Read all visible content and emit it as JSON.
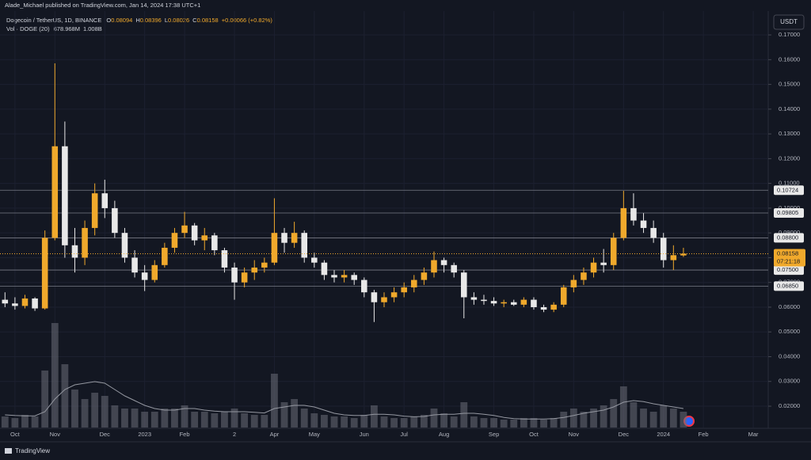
{
  "header": {
    "publisher": "Alade_Michael published on TradingView.com, Jan 14, 2024 17:38 UTC+1",
    "symbol": "Dogecoin / TetherUS, 1D, BINANCE",
    "ohlc": [
      {
        "label": "O",
        "value": 0.08094
      },
      {
        "label": "H",
        "value": 0.08396
      },
      {
        "label": "L",
        "value": 0.08026
      },
      {
        "label": "C",
        "value": 0.08158
      }
    ],
    "change": "+0.00066 (+0.82%)",
    "volume_label": "Vol · DOGE (20)",
    "volume_value": "678.968M",
    "volume_ma_value": "1.008B",
    "currency": "USDT"
  },
  "footer": {
    "brand": "TradingView"
  },
  "chart_data": {
    "type": "candlestick",
    "up_color": "#f0a92c",
    "down_color": "#e8e8e8",
    "grid": true,
    "categories": [
      null,
      "Oct",
      null,
      null,
      null,
      "Nov",
      null,
      null,
      null,
      null,
      "Dec",
      null,
      null,
      null,
      "2023",
      null,
      null,
      null,
      "Feb",
      null,
      null,
      null,
      null,
      "2",
      null,
      null,
      null,
      "Apr",
      null,
      null,
      null,
      "May",
      null,
      null,
      null,
      null,
      "Jun",
      null,
      null,
      null,
      "Jul",
      null,
      null,
      null,
      "Aug",
      null,
      null,
      null,
      null,
      "Sep",
      null,
      null,
      null,
      "Oct",
      null,
      null,
      null,
      "Nov",
      null,
      null,
      null,
      null,
      "Dec",
      null,
      null,
      null,
      "2024",
      null,
      null,
      null,
      "Feb",
      null,
      null,
      null,
      null,
      "Mar",
      null
    ],
    "candles": [
      [
        0.063,
        0.066,
        0.06,
        0.0615
      ],
      [
        0.0615,
        0.064,
        0.059,
        0.0605
      ],
      [
        0.0605,
        0.065,
        0.0595,
        0.0635
      ],
      [
        0.0635,
        0.064,
        0.0585,
        0.0595
      ],
      [
        0.0595,
        0.091,
        0.059,
        0.088
      ],
      [
        0.088,
        0.1585,
        0.087,
        0.125
      ],
      [
        0.125,
        0.135,
        0.08,
        0.085
      ],
      [
        0.085,
        0.092,
        0.074,
        0.08
      ],
      [
        0.08,
        0.095,
        0.077,
        0.092
      ],
      [
        0.092,
        0.11,
        0.089,
        0.106
      ],
      [
        0.106,
        0.1115,
        0.096,
        0.1
      ],
      [
        0.1,
        0.103,
        0.088,
        0.09
      ],
      [
        0.09,
        0.092,
        0.078,
        0.08
      ],
      [
        0.08,
        0.083,
        0.072,
        0.074
      ],
      [
        0.074,
        0.077,
        0.0665,
        0.071
      ],
      [
        0.071,
        0.079,
        0.07,
        0.077
      ],
      [
        0.077,
        0.086,
        0.076,
        0.084
      ],
      [
        0.084,
        0.092,
        0.082,
        0.09
      ],
      [
        0.09,
        0.0985,
        0.088,
        0.093
      ],
      [
        0.093,
        0.094,
        0.085,
        0.087
      ],
      [
        0.087,
        0.092,
        0.083,
        0.089
      ],
      [
        0.089,
        0.09,
        0.081,
        0.083
      ],
      [
        0.083,
        0.084,
        0.074,
        0.076
      ],
      [
        0.076,
        0.078,
        0.063,
        0.07
      ],
      [
        0.07,
        0.076,
        0.068,
        0.074
      ],
      [
        0.074,
        0.079,
        0.071,
        0.076
      ],
      [
        0.076,
        0.08,
        0.074,
        0.078
      ],
      [
        0.078,
        0.104,
        0.077,
        0.09
      ],
      [
        0.09,
        0.092,
        0.082,
        0.086
      ],
      [
        0.086,
        0.0945,
        0.084,
        0.09
      ],
      [
        0.09,
        0.091,
        0.078,
        0.08
      ],
      [
        0.08,
        0.082,
        0.076,
        0.078
      ],
      [
        0.078,
        0.079,
        0.071,
        0.073
      ],
      [
        0.073,
        0.075,
        0.07,
        0.072
      ],
      [
        0.072,
        0.075,
        0.07,
        0.073
      ],
      [
        0.073,
        0.074,
        0.069,
        0.071
      ],
      [
        0.071,
        0.072,
        0.064,
        0.066
      ],
      [
        0.066,
        0.067,
        0.054,
        0.062
      ],
      [
        0.062,
        0.066,
        0.06,
        0.064
      ],
      [
        0.064,
        0.068,
        0.062,
        0.066
      ],
      [
        0.066,
        0.07,
        0.064,
        0.068
      ],
      [
        0.068,
        0.073,
        0.066,
        0.071
      ],
      [
        0.071,
        0.076,
        0.069,
        0.074
      ],
      [
        0.074,
        0.0825,
        0.072,
        0.079
      ],
      [
        0.079,
        0.08,
        0.074,
        0.077
      ],
      [
        0.077,
        0.078,
        0.072,
        0.074
      ],
      [
        0.074,
        0.075,
        0.0555,
        0.064
      ],
      [
        0.064,
        0.066,
        0.061,
        0.063
      ],
      [
        0.063,
        0.065,
        0.061,
        0.0625
      ],
      [
        0.0625,
        0.064,
        0.0605,
        0.0615
      ],
      [
        0.0615,
        0.063,
        0.06,
        0.062
      ],
      [
        0.062,
        0.063,
        0.0605,
        0.061
      ],
      [
        0.061,
        0.064,
        0.06,
        0.063
      ],
      [
        0.063,
        0.064,
        0.059,
        0.06
      ],
      [
        0.06,
        0.061,
        0.058,
        0.059
      ],
      [
        0.059,
        0.062,
        0.058,
        0.061
      ],
      [
        0.061,
        0.069,
        0.06,
        0.068
      ],
      [
        0.068,
        0.073,
        0.066,
        0.071
      ],
      [
        0.071,
        0.076,
        0.069,
        0.074
      ],
      [
        0.074,
        0.08,
        0.072,
        0.078
      ],
      [
        0.078,
        0.0835,
        0.074,
        0.077
      ],
      [
        0.077,
        0.09,
        0.075,
        0.088
      ],
      [
        0.088,
        0.107,
        0.087,
        0.1
      ],
      [
        0.1,
        0.106,
        0.093,
        0.095
      ],
      [
        0.095,
        0.098,
        0.09,
        0.092
      ],
      [
        0.092,
        0.095,
        0.086,
        0.088
      ],
      [
        0.088,
        0.09,
        0.076,
        0.079
      ],
      [
        0.079,
        0.085,
        0.075,
        0.081
      ],
      [
        0.0809,
        0.084,
        0.0803,
        0.0816
      ],
      null,
      null,
      null,
      null,
      null,
      null,
      null,
      null
    ],
    "volume": [
      0.35,
      0.3,
      0.4,
      0.35,
      1.8,
      3.3,
      2.0,
      1.2,
      0.9,
      1.1,
      1.0,
      0.7,
      0.6,
      0.6,
      0.5,
      0.5,
      0.6,
      0.6,
      0.7,
      0.5,
      0.5,
      0.45,
      0.5,
      0.6,
      0.45,
      0.4,
      0.4,
      1.7,
      0.8,
      0.9,
      0.6,
      0.45,
      0.4,
      0.35,
      0.35,
      0.3,
      0.4,
      0.7,
      0.35,
      0.3,
      0.3,
      0.35,
      0.4,
      0.6,
      0.45,
      0.35,
      0.8,
      0.35,
      0.3,
      0.3,
      0.25,
      0.25,
      0.3,
      0.3,
      0.25,
      0.3,
      0.5,
      0.6,
      0.5,
      0.6,
      0.7,
      0.9,
      1.3,
      0.8,
      0.6,
      0.5,
      0.7,
      0.6,
      0.5,
      null,
      null,
      null,
      null,
      null,
      null,
      null,
      null
    ],
    "volume_ma": [
      0.4,
      0.38,
      0.37,
      0.37,
      0.5,
      0.9,
      1.2,
      1.35,
      1.4,
      1.45,
      1.4,
      1.2,
      1.0,
      0.85,
      0.7,
      0.6,
      0.55,
      0.55,
      0.6,
      0.6,
      0.55,
      0.52,
      0.5,
      0.5,
      0.5,
      0.48,
      0.46,
      0.6,
      0.65,
      0.7,
      0.7,
      0.65,
      0.55,
      0.45,
      0.4,
      0.38,
      0.38,
      0.42,
      0.42,
      0.4,
      0.36,
      0.34,
      0.35,
      0.4,
      0.42,
      0.42,
      0.45,
      0.45,
      0.42,
      0.38,
      0.32,
      0.28,
      0.27,
      0.27,
      0.27,
      0.28,
      0.32,
      0.38,
      0.45,
      0.5,
      0.55,
      0.65,
      0.8,
      0.85,
      0.82,
      0.75,
      0.7,
      0.65,
      0.6,
      null,
      null,
      null,
      null,
      null,
      null,
      null,
      null
    ],
    "volume_lim": [
      0,
      4
    ],
    "ylim": [
      0.01137,
      0.1777
    ],
    "yticks": [
      {
        "value": 0.02,
        "label": "0.02000"
      },
      {
        "value": 0.03,
        "label": "0.03000"
      },
      {
        "value": 0.04,
        "label": "0.04000"
      },
      {
        "value": 0.05,
        "label": "0.05000"
      },
      {
        "value": 0.06,
        "label": "0.06000"
      },
      {
        "value": 0.07,
        "label": "0.07000"
      },
      {
        "value": 0.08,
        "label": "0.08000"
      },
      {
        "value": 0.09,
        "label": "0.09000"
      },
      {
        "value": 0.1,
        "label": "0.10000"
      },
      {
        "value": 0.11,
        "label": "0.11000"
      },
      {
        "value": 0.12,
        "label": "0.12000"
      },
      {
        "value": 0.13,
        "label": "0.13000"
      },
      {
        "value": 0.14,
        "label": "0.14000"
      },
      {
        "value": 0.15,
        "label": "0.15000"
      },
      {
        "value": 0.16,
        "label": "0.16000"
      },
      {
        "value": 0.17,
        "label": "0.17000"
      }
    ],
    "levels": [
      {
        "value": 0.10724,
        "label": "0.10724"
      },
      {
        "value": 0.09805,
        "label": "0.09805"
      },
      {
        "value": 0.088,
        "label": "0.08800"
      },
      {
        "value": 0.075,
        "label": "0.07500"
      },
      {
        "value": 0.0685,
        "label": "0.06850"
      }
    ],
    "current_price": {
      "value": 0.08158,
      "label": "0.08158",
      "countdown": "07:21:18",
      "color": "#f0a92c"
    }
  }
}
